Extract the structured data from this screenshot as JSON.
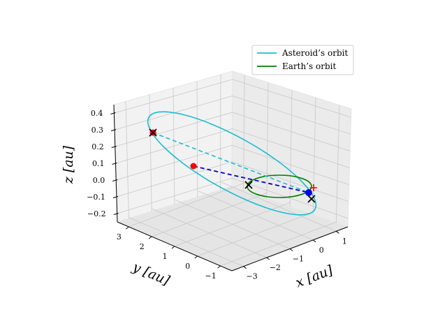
{
  "chart_data": {
    "type": "line",
    "projection": "3d",
    "axes": {
      "x": {
        "label": "x [au]",
        "ticks": [
          "−3",
          "−2",
          "−1",
          "0",
          "1"
        ],
        "range": [
          -3.5,
          1.5
        ]
      },
      "y": {
        "label": "y [au]",
        "ticks": [
          "−1",
          "0",
          "1",
          "2",
          "3"
        ],
        "range": [
          -1.5,
          3.5
        ]
      },
      "z": {
        "label": "z [au]",
        "ticks": [
          "−0.2",
          "−0.1",
          "0.0",
          "0.1",
          "0.2",
          "0.3",
          "0.4"
        ],
        "range": [
          -0.25,
          0.45
        ]
      }
    },
    "grid": true,
    "legend": {
      "placement": "top-right",
      "entries": [
        {
          "label": "Asteroid’s orbit",
          "color": "#17becf"
        },
        {
          "label": "Earth’s orbit",
          "color": "#008000"
        }
      ]
    },
    "series": [
      {
        "name": "Asteroid’s orbit",
        "color": "#17becf"
      },
      {
        "name": "Earth’s orbit",
        "color": "#008000"
      }
    ],
    "markers": {
      "red_dots": [
        [
          -1.5,
          2.5,
          0.25
        ],
        [
          0.8,
          -0.6,
          0.0
        ]
      ],
      "blue_dot": [
        0.9,
        -0.5,
        0.0
      ],
      "red_plus": [
        0.96,
        -0.35,
        0.0
      ],
      "black_x": [
        [
          -2.8,
          3.0,
          0.32
        ],
        [
          -0.9,
          -0.2,
          0.0
        ],
        [
          0.8,
          -0.7,
          0.0
        ]
      ]
    },
    "colors": {
      "asteroid": "#17becf",
      "earth": "#008000",
      "transfer": "#0000cd",
      "marker_red": "#ff0000",
      "marker_blue": "#0000ff",
      "marker_black": "#000000"
    }
  }
}
